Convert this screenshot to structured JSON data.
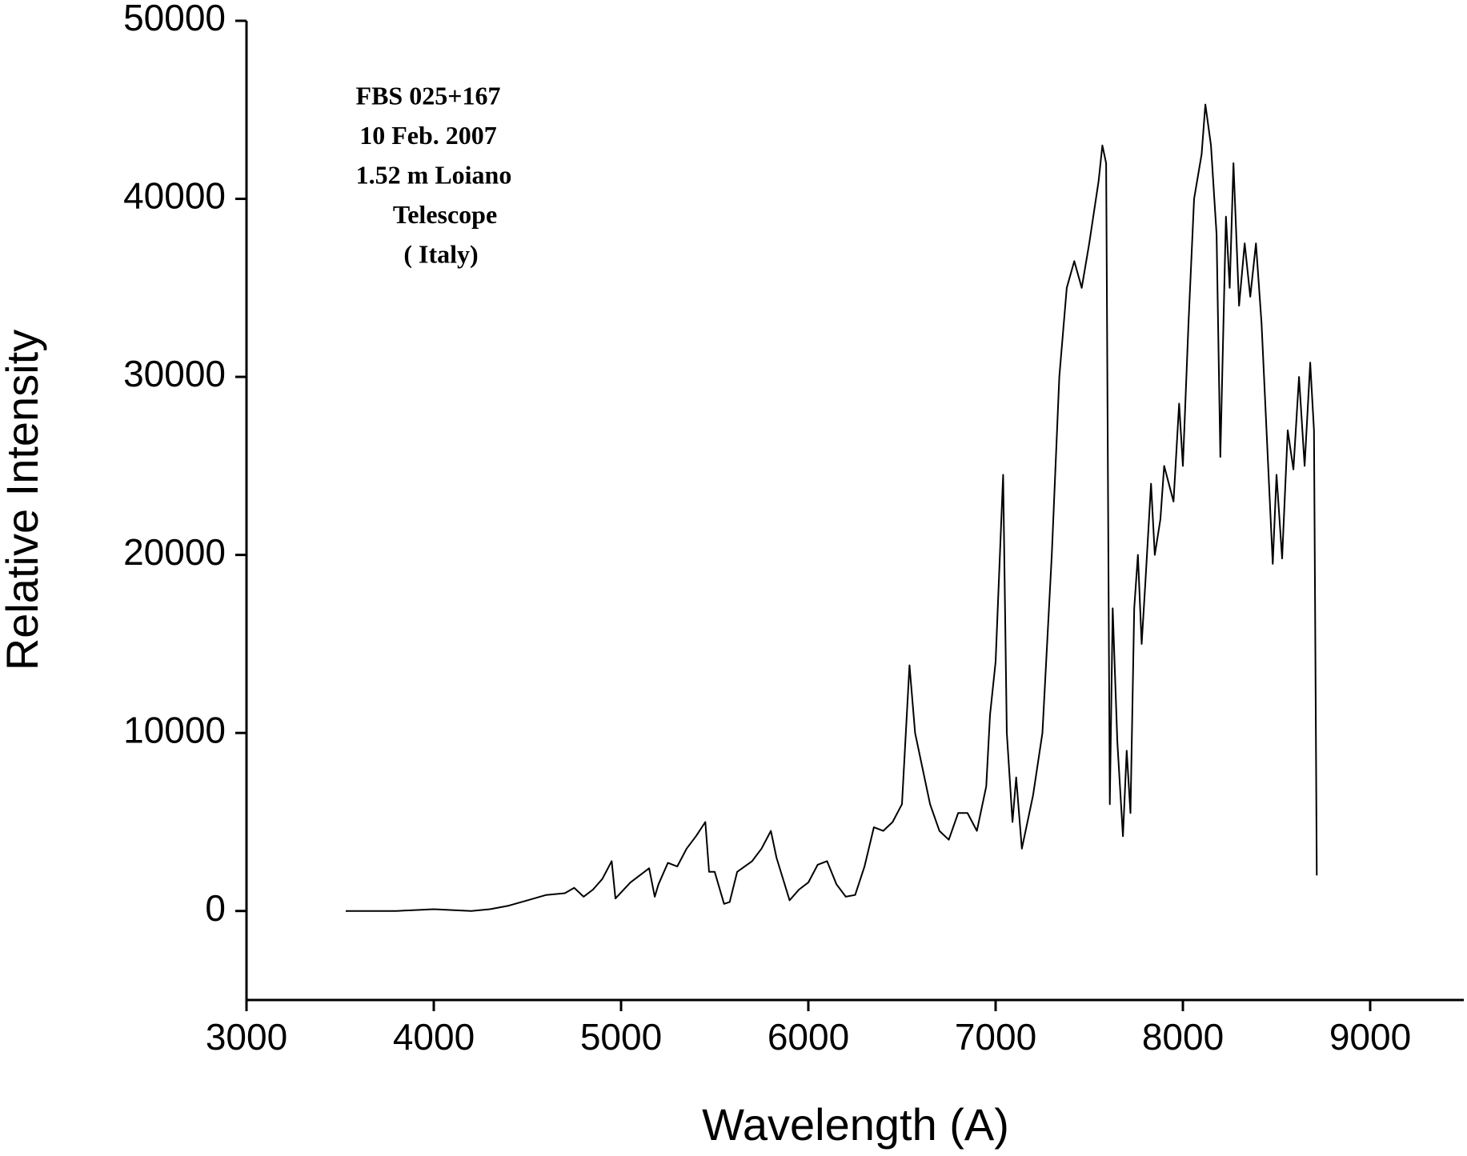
{
  "chart_data": {
    "type": "line",
    "xlabel": "Wavelength (A)",
    "ylabel": "Relative Intensity",
    "annotations": [
      "FBS 025+167",
      "10 Feb. 2007",
      "1.52 m Loiano",
      "Telescope",
      "( Italy)"
    ],
    "xlim": [
      3000,
      9500
    ],
    "xticks": [
      3000,
      4000,
      5000,
      6000,
      7000,
      8000,
      9000
    ],
    "ylim": [
      -5000,
      50000
    ],
    "yticks": [
      0,
      10000,
      20000,
      30000,
      40000,
      50000
    ],
    "color": "#000000",
    "x": [
      3530,
      3800,
      4000,
      4200,
      4300,
      4400,
      4500,
      4600,
      4700,
      4750,
      4800,
      4850,
      4900,
      4950,
      4970,
      5050,
      5150,
      5180,
      5200,
      5250,
      5300,
      5350,
      5400,
      5450,
      5470,
      5500,
      5550,
      5580,
      5620,
      5700,
      5750,
      5800,
      5830,
      5900,
      5950,
      6000,
      6050,
      6100,
      6150,
      6200,
      6250,
      6300,
      6350,
      6400,
      6450,
      6500,
      6540,
      6570,
      6600,
      6650,
      6700,
      6750,
      6800,
      6850,
      6900,
      6950,
      6970,
      7000,
      7040,
      7060,
      7090,
      7110,
      7140,
      7200,
      7250,
      7300,
      7340,
      7380,
      7420,
      7460,
      7500,
      7550,
      7570,
      7590,
      7610,
      7625,
      7650,
      7680,
      7700,
      7720,
      7740,
      7760,
      7780,
      7800,
      7830,
      7850,
      7880,
      7900,
      7950,
      7980,
      8000,
      8030,
      8060,
      8100,
      8120,
      8150,
      8180,
      8200,
      8230,
      8250,
      8270,
      8300,
      8330,
      8360,
      8390,
      8420,
      8460,
      8480,
      8500,
      8530,
      8560,
      8590,
      8620,
      8650,
      8680,
      8700,
      8715
    ],
    "values": [
      0,
      0,
      100,
      0,
      100,
      300,
      600,
      900,
      1000,
      1300,
      800,
      1200,
      1800,
      2800,
      700,
      1600,
      2400,
      800,
      1500,
      2700,
      2500,
      3500,
      4200,
      5000,
      2200,
      2200,
      400,
      500,
      2200,
      2800,
      3500,
      4500,
      3000,
      600,
      1200,
      1600,
      2600,
      2800,
      1500,
      800,
      900,
      2500,
      4700,
      4500,
      5000,
      6000,
      13800,
      10000,
      8500,
      6000,
      4500,
      4000,
      5500,
      5500,
      4500,
      7000,
      11000,
      14000,
      24500,
      10000,
      5000,
      7500,
      3500,
      6500,
      10000,
      20000,
      30000,
      35000,
      36500,
      35000,
      37500,
      41000,
      43000,
      42000,
      6000,
      17000,
      9500,
      4200,
      9000,
      5500,
      17000,
      20000,
      15000,
      18500,
      24000,
      20000,
      22000,
      25000,
      23000,
      28500,
      25000,
      33000,
      40000,
      42500,
      45300,
      43000,
      38000,
      25500,
      39000,
      35000,
      42000,
      34000,
      37500,
      34500,
      37500,
      33000,
      24000,
      19500,
      24500,
      19800,
      27000,
      24800,
      30000,
      25000,
      30800,
      27000,
      2000
    ]
  }
}
